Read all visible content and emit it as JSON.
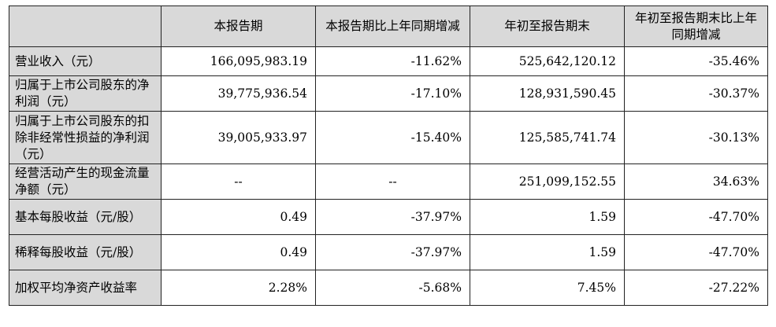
{
  "headers": {
    "corner": "",
    "col1": "本报告期",
    "col2": "本报告期比上年同期增减",
    "col3": "年初至报告期末",
    "col4": "年初至报告期末比上年同期增减"
  },
  "rows": [
    {
      "label": "营业收入（元）",
      "current": "166,095,983.19",
      "current_change": "-11.62%",
      "ytd": "525,642,120.12",
      "ytd_change": "-35.46%"
    },
    {
      "label": "归属于上市公司股东的净利润（元）",
      "current": "39,775,936.54",
      "current_change": "-17.10%",
      "ytd": "128,931,590.45",
      "ytd_change": "-30.37%"
    },
    {
      "label": "归属于上市公司股东的扣除非经常性损益的净利润（元）",
      "current": "39,005,933.97",
      "current_change": "-15.40%",
      "ytd": "125,585,741.74",
      "ytd_change": "-30.13%"
    },
    {
      "label": "经营活动产生的现金流量净额（元）",
      "current": "--",
      "current_change": "--",
      "ytd": "251,099,152.55",
      "ytd_change": "34.63%"
    },
    {
      "label": "基本每股收益（元/股）",
      "current": "0.49",
      "current_change": "-37.97%",
      "ytd": "1.59",
      "ytd_change": "-47.70%"
    },
    {
      "label": "稀释每股收益（元/股）",
      "current": "0.49",
      "current_change": "-37.97%",
      "ytd": "1.59",
      "ytd_change": "-47.70%"
    },
    {
      "label": "加权平均净资产收益率",
      "current": "2.28%",
      "current_change": "-5.68%",
      "ytd": "7.45%",
      "ytd_change": "-27.22%"
    }
  ],
  "colors": {
    "header_bg": "#d9d9d9",
    "label_bg": "#d9d9d9",
    "border": "#222222"
  }
}
